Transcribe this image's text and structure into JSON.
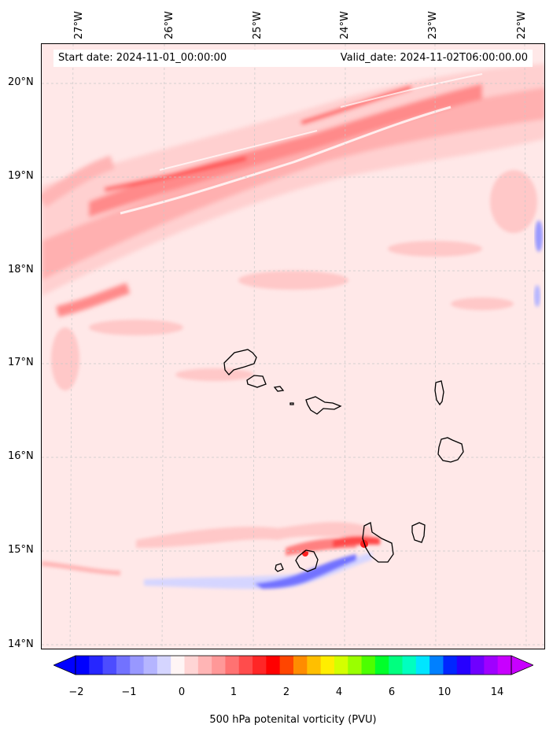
{
  "map": {
    "start_date": "Start date: 2024-11-01_00:00:00",
    "valid_date": "Valid_date: 2024-11-02T06:00:00.00",
    "lon_labels": [
      "27°W",
      "26°W",
      "25°W",
      "24°W",
      "23°W",
      "22°W"
    ],
    "lat_labels": [
      "20°N",
      "19°N",
      "18°N",
      "17°N",
      "16°N",
      "15°N",
      "14°N"
    ],
    "variable": "500 hPa potenital vorticity (PVU)"
  },
  "colorbar": {
    "ticks": [
      "−2",
      "−1",
      "0",
      "1",
      "2",
      "4",
      "6",
      "10",
      "14"
    ],
    "colors": [
      "#0000ff",
      "#2626ff",
      "#4c4cff",
      "#7272ff",
      "#9898ff",
      "#b5b5ff",
      "#d5d5ff",
      "#fff5f5",
      "#ffd5d5",
      "#ffb5b5",
      "#ff9898",
      "#ff7272",
      "#ff4c4c",
      "#ff2626",
      "#ff0000",
      "#ff4500",
      "#ff8c00",
      "#ffbf00",
      "#ffee00",
      "#d4ff00",
      "#9aff00",
      "#4cff00",
      "#00ff2a",
      "#00ff7f",
      "#00ffbf",
      "#00e5ff",
      "#0080ff",
      "#0026ff",
      "#2600ff",
      "#6f00ff",
      "#9f00ff",
      "#c800ff"
    ]
  }
}
